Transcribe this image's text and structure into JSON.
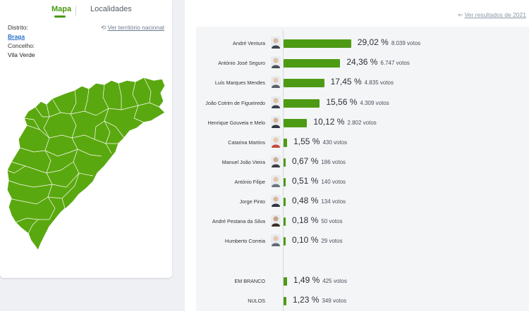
{
  "tabs": {
    "map": "Mapa",
    "localities": "Localidades"
  },
  "district": {
    "label": "Distrito:",
    "value": "Braga"
  },
  "municipality": {
    "label": "Concelho:",
    "value": "Vila Verde"
  },
  "national_link": "Ver território nacional",
  "previous_results_link": "Ver resultados de 2021",
  "colors": {
    "accent": "#4a9a12",
    "bar": "#4d9a14",
    "map_fill": "#5aa80f",
    "link": "#2a6fcb"
  },
  "candidates": [
    {
      "name": "André Ventura",
      "pct": "29,02 %",
      "votes": "8.039 votos",
      "share": 29.02
    },
    {
      "name": "António José Seguro",
      "pct": "24,36 %",
      "votes": "6.747 votos",
      "share": 24.36
    },
    {
      "name": "Luís Marques Mendes",
      "pct": "17,45 %",
      "votes": "4.835 votos",
      "share": 17.45
    },
    {
      "name": "João Cotrim de Figueiredo",
      "pct": "15,56 %",
      "votes": "4.309 votos",
      "share": 15.56
    },
    {
      "name": "Henrique Gouveia e Melo",
      "pct": "10,12 %",
      "votes": "2.802 votos",
      "share": 10.12
    },
    {
      "name": "Catarina Martins",
      "pct": "1,55 %",
      "votes": "430 votos",
      "share": 1.55
    },
    {
      "name": "Manuel João Vieira",
      "pct": "0,67 %",
      "votes": "186 votos",
      "share": 0.67
    },
    {
      "name": "António Filipe",
      "pct": "0,51 %",
      "votes": "140 votos",
      "share": 0.51
    },
    {
      "name": "Jorge Pinto",
      "pct": "0,48 %",
      "votes": "134 votos",
      "share": 0.48
    },
    {
      "name": "André Pestana da Silva",
      "pct": "0,18 %",
      "votes": "50 votos",
      "share": 0.18
    },
    {
      "name": "Humberto Correia",
      "pct": "0,10 %",
      "votes": "29 votos",
      "share": 0.1
    }
  ],
  "blank": {
    "name": "EM BRANCO",
    "pct": "1,49 %",
    "votes": "425 votos",
    "share": 1.49
  },
  "null": {
    "name": "NULOS",
    "pct": "1,23 %",
    "votes": "349 votos",
    "share": 1.23
  }
}
